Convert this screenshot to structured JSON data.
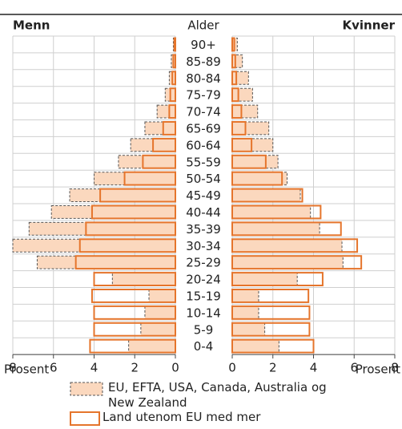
{
  "chart_data": {
    "type": "pyramid",
    "left_label": "Menn",
    "right_label": "Kvinner",
    "category_label": "Alder",
    "xlabel": "Prosent",
    "categories": [
      "90+",
      "85-89",
      "80-84",
      "75-79",
      "70-74",
      "65-69",
      "60-64",
      "55-59",
      "50-54",
      "45-49",
      "40-44",
      "35-39",
      "30-34",
      "25-29",
      "20-24",
      "15-19",
      "10-14",
      "5-9",
      "0-4"
    ],
    "xlim": [
      0,
      8
    ],
    "xticks": [
      0,
      2,
      4,
      6,
      8
    ],
    "grid": true,
    "series": [
      {
        "name": "EU, EFTA, USA, Canada, Australia og New Zealand",
        "fill": "#fbd8be",
        "stroke": "#555555",
        "dashed": true,
        "men": [
          0.1,
          0.2,
          0.3,
          0.5,
          0.9,
          1.5,
          2.2,
          2.8,
          4.0,
          5.2,
          6.1,
          7.2,
          8.0,
          6.8,
          3.1,
          1.3,
          1.5,
          1.7,
          2.3
        ],
        "women": [
          0.25,
          0.5,
          0.8,
          1.0,
          1.25,
          1.8,
          2.0,
          2.25,
          2.7,
          3.35,
          3.85,
          4.3,
          5.4,
          5.45,
          3.2,
          1.3,
          1.3,
          1.6,
          2.3
        ]
      },
      {
        "name": "Land utenom EU med mer",
        "fill": "none",
        "stroke": "#e5752c",
        "dashed": false,
        "men": [
          0.05,
          0.1,
          0.15,
          0.25,
          0.3,
          0.6,
          1.1,
          1.6,
          2.5,
          3.7,
          4.1,
          4.4,
          4.7,
          4.9,
          4.0,
          4.1,
          4.0,
          4.0,
          4.2
        ],
        "women": [
          0.1,
          0.15,
          0.2,
          0.3,
          0.45,
          0.65,
          0.95,
          1.65,
          2.45,
          3.45,
          4.35,
          5.35,
          6.15,
          6.35,
          4.45,
          3.75,
          3.8,
          3.8,
          4.0
        ]
      }
    ]
  }
}
